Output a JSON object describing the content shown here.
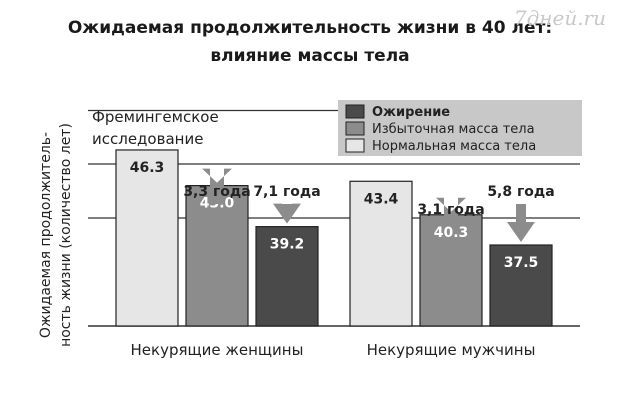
{
  "watermark": "7дней.ru",
  "chart_data": {
    "type": "bar",
    "title": "Ожидаемая продолжительность жизни в 40 лет:",
    "subtitle": "влияние массы тела",
    "note": "Фремингемское исследование",
    "ylabel": "Ожидаемая продолжитель-ность жизни (количество лет)",
    "ylim": [
      30,
      50
    ],
    "grid": true,
    "legend_position": "top-right",
    "categories": [
      "Некурящие женщины",
      "Некурящие мужчины"
    ],
    "series": [
      {
        "name": "Нормальная масса тела",
        "color": "#e6e6e6",
        "values": [
          46.3,
          43.4
        ]
      },
      {
        "name": "Избыточная масса тела",
        "color": "#8c8c8c",
        "values": [
          43.0,
          40.3
        ]
      },
      {
        "name": "Ожирение",
        "color": "#4a4a4a",
        "values": [
          39.2,
          37.5
        ]
      }
    ],
    "legend_order": [
      "Ожирение",
      "Избыточная масса тела",
      "Нормальная масса тела"
    ],
    "value_labels": [
      [
        "46.3",
        "43.0",
        "39.2"
      ],
      [
        "43.4",
        "40.3",
        "37.5"
      ]
    ],
    "annotations": [
      {
        "category": "Некурящие женщины",
        "series": "Избыточная масса тела",
        "text": "3,3 года",
        "years_lost": 3.3
      },
      {
        "category": "Некурящие женщины",
        "series": "Ожирение",
        "text": "7,1 года",
        "years_lost": 7.1
      },
      {
        "category": "Некурящие мужчины",
        "series": "Избыточная масса тела",
        "text": "3,1 года",
        "years_lost": 3.1
      },
      {
        "category": "Некурящие мужчины",
        "series": "Ожирение",
        "text": "5,8 года",
        "years_lost": 5.8
      }
    ]
  }
}
